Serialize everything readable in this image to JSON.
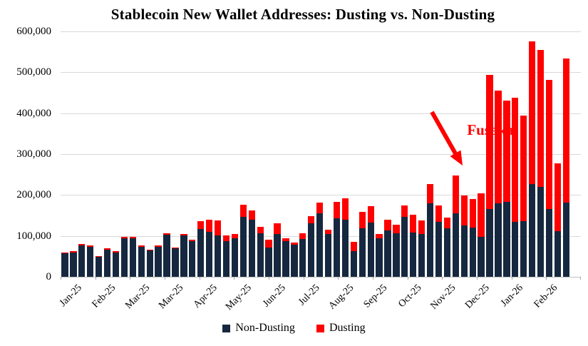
{
  "chart_data": {
    "type": "bar",
    "stacked": true,
    "title": "Stablecoin New Wallet Addresses: Dusting vs. Non-Dusting",
    "xlabel": "",
    "ylabel": "",
    "ylim": [
      0,
      600000
    ],
    "grid": "horizontal",
    "legend_position": "bottom",
    "y_tick_labels": [
      "600,000",
      "500,000",
      "400,000",
      "300,000",
      "200,000",
      "100,000",
      "0"
    ],
    "x_tick_labels": [
      "Jan-25",
      "Feb-25",
      "Mar-25",
      "Mar-25",
      "Apr-25",
      "May-25",
      "Jun-25",
      "Jul-25",
      "Aug-25",
      "Sep-25",
      "Oct-25",
      "Nov-25",
      "Dec-25",
      "Jan-26",
      "Feb-26"
    ],
    "x_tick_every": 4,
    "series": [
      {
        "name": "Non-Dusting",
        "color": "#16283f",
        "values": [
          57000,
          60000,
          77000,
          73000,
          48000,
          67000,
          59000,
          95000,
          94000,
          73000,
          64000,
          74000,
          103000,
          69000,
          102000,
          87000,
          117000,
          110000,
          101000,
          88000,
          94000,
          146000,
          140000,
          107000,
          72000,
          104000,
          87000,
          79000,
          92000,
          130000,
          156000,
          104000,
          143000,
          139000,
          63000,
          119000,
          133000,
          94000,
          113000,
          107000,
          147000,
          108000,
          104000,
          180000,
          135000,
          119000,
          155000,
          126000,
          120000,
          98000,
          165000,
          180000,
          183000,
          134000,
          136000,
          227000,
          220000,
          165000,
          112000,
          181000
        ]
      },
      {
        "name": "Dusting",
        "color": "#ff0000",
        "values": [
          2000,
          3000,
          4000,
          3000,
          3000,
          3000,
          3000,
          3000,
          3000,
          3000,
          2000,
          3000,
          4000,
          3000,
          3000,
          3000,
          19000,
          29000,
          36000,
          14000,
          11000,
          31000,
          22000,
          16000,
          19000,
          26000,
          8000,
          4000,
          15000,
          19000,
          25000,
          12000,
          41000,
          53000,
          23000,
          39000,
          39000,
          11000,
          27000,
          20000,
          28000,
          44000,
          33000,
          46000,
          40000,
          26000,
          93000,
          73000,
          71000,
          106000,
          328000,
          275000,
          248000,
          303000,
          259000,
          348000,
          334000,
          316000,
          165000,
          353000
        ]
      }
    ],
    "annotation": {
      "label": "Fusaka",
      "color": "#ff0000",
      "target_bar_index": 46
    }
  },
  "colors": {
    "background": "#ffffff",
    "gridline": "#d9d9d9",
    "axis": "#bfbfbf",
    "text": "#000000"
  }
}
